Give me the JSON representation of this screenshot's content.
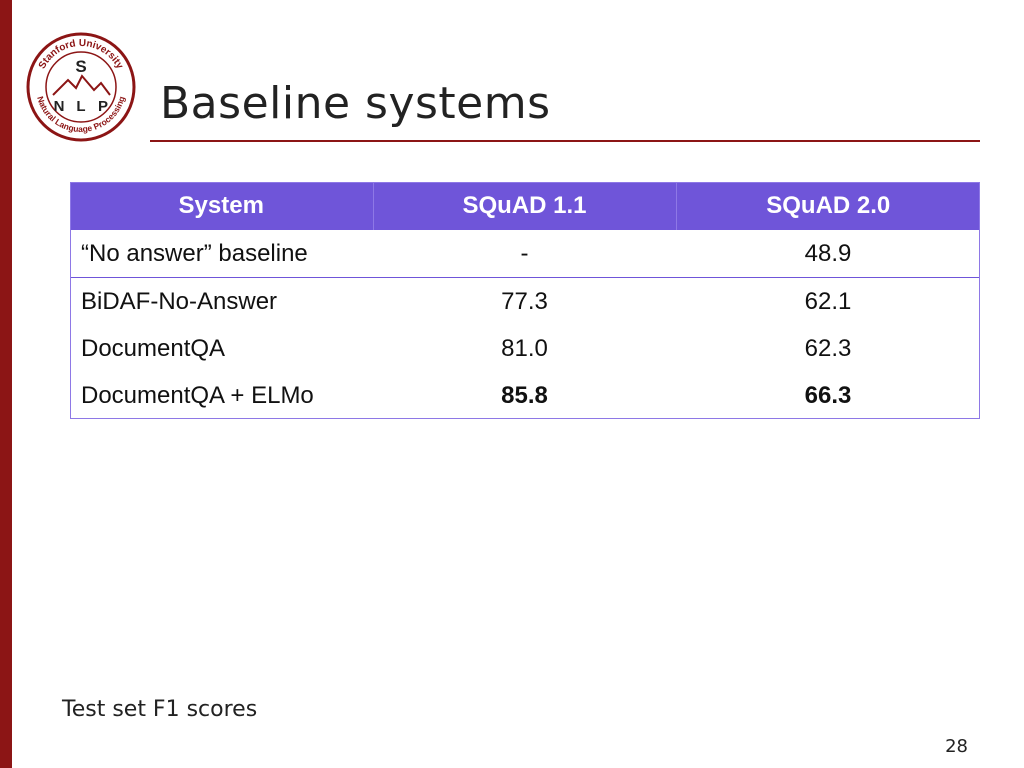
{
  "slide": {
    "title": "Baseline systems",
    "footnote": "Test set F1 scores",
    "page_number": "28"
  },
  "logo": {
    "top_text": "Stanford University",
    "bottom_text": "Natural Language Processing",
    "letters": [
      "S",
      "N",
      "L",
      "P"
    ]
  },
  "table": {
    "headers": [
      "System",
      "SQuAD 1.1",
      "SQuAD 2.0"
    ],
    "rows": [
      {
        "system": "“No answer” baseline",
        "squad11": "-",
        "squad20": "48.9"
      },
      {
        "system": "BiDAF-No-Answer",
        "squad11": "77.3",
        "squad20": "62.1"
      },
      {
        "system": "DocumentQA",
        "squad11": "81.0",
        "squad20": "62.3"
      },
      {
        "system": "DocumentQA + ELMo",
        "squad11": "85.8",
        "squad20": "66.3"
      }
    ],
    "bold_row_index": 3
  },
  "colors": {
    "stanford_red": "#8c1515",
    "header_purple": "#6f55d9"
  }
}
